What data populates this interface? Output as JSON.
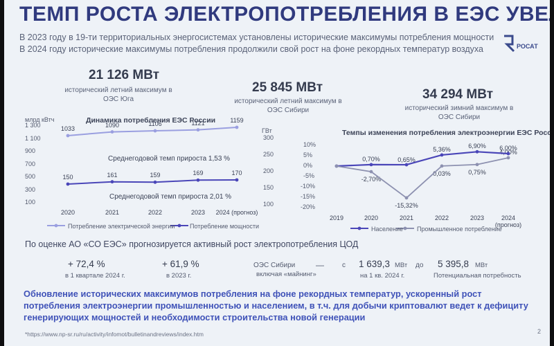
{
  "title": "ТЕМП РОСТА ЭЛЕКТРОПОТРЕБЛЕНИЯ В ЕЭС УВЕЛИЧИВАЕТСЯ",
  "logo_text": "РОСАТ",
  "intro": {
    "line1": "В 2023 году в 19-ти территориальных энергосистемах установлены исторические максимумы потребления мощности",
    "line2": "В 2024 году исторические максимумы потребления продолжили свой рост на фоне рекордных температур воздуха"
  },
  "stats": [
    {
      "value": "21 126 МВт",
      "desc1": "исторический летний максимум в",
      "desc2": "ОЭС Юга"
    },
    {
      "value": "25 845 МВт",
      "desc1": "исторический летний максимум в",
      "desc2": "ОЭС Сибири"
    },
    {
      "value": "34 294 МВт",
      "desc1": "исторический зимний максимум в",
      "desc2": "ОЭС Сибири"
    }
  ],
  "colors": {
    "title": "#303a7e",
    "line_energy": "#9a9fe0",
    "line_power": "#4a46b8",
    "line_population": "#4a46b8",
    "line_industry": "#8d91b0",
    "conclusion": "#3f52b8"
  },
  "chart_data": [
    {
      "type": "line",
      "title": "Динамика потребления ЕЭС России",
      "x": [
        "2020",
        "2021",
        "2022",
        "2023",
        "2024 (прогноз)"
      ],
      "left_axis_unit": "млрд кВтч",
      "left_ticks": [
        "1 300",
        "1 100",
        "900",
        "700",
        "500",
        "300",
        "100"
      ],
      "right_axis_unit": "ГВт",
      "right_ticks": [
        "300",
        "250",
        "200",
        "150",
        "100"
      ],
      "series": [
        {
          "name": "Потребление электрической энергии",
          "values": [
            1033,
            1090,
            1106,
            1121,
            1159
          ]
        },
        {
          "name": "Потребление мощности",
          "values": [
            150,
            161,
            159,
            169,
            170
          ]
        }
      ],
      "annotations": [
        "Среднегодовой темп прироста 1,53 %",
        "Среднегодовой темп прироста 2,01 %"
      ]
    },
    {
      "type": "line",
      "title": "Темпы изменения потребления электроэнергии ЕЭС России",
      "x": [
        "2019",
        "2020",
        "2021",
        "2022",
        "2023",
        "2024 (прогноз)"
      ],
      "y_ticks": [
        "10%",
        "5%",
        "0%",
        "-5%",
        "-10%",
        "-15%",
        "-20%"
      ],
      "ylim": [
        -20,
        10
      ],
      "series": [
        {
          "name": "Население",
          "values": [
            0,
            0.7,
            0.65,
            5.36,
            6.9,
            6.0
          ],
          "labels": [
            "",
            "0,70%",
            "0,65%",
            "5,36%",
            "6,90%",
            "6,00%"
          ]
        },
        {
          "name": "Промышленное потребление",
          "values": [
            0,
            -2.7,
            -15.32,
            0.03,
            0.75,
            4.0
          ],
          "labels": [
            "",
            "-2,70%",
            "-15,32%",
            "0,03%",
            "0,75%",
            "4,00%"
          ]
        }
      ]
    }
  ],
  "forecast": {
    "heading": "По оценке АО «СО ЕЭС» прогнозируется активный рост электропотребления ЦОД",
    "items": [
      {
        "big": "+ 72,4 %",
        "sub": "в 1 квартале 2024 г."
      },
      {
        "big": "+ 61,9 %",
        "sub": "в 2023 г."
      }
    ],
    "region": "ОЭС Сибири",
    "region_sub": "включая «майнинг»",
    "dash": "—",
    "from_word": "с",
    "from_value": "1 639,3",
    "from_unit": "МВт",
    "from_sub": "на 1 кв. 2024 г.",
    "to_word": "до",
    "to_value": "5 395,8",
    "to_unit": "МВт",
    "to_sub": "Потенциальная потребность"
  },
  "conclusion": "Обновление исторических максимумов потребления на фоне рекордных температур, ускоренный рост потребления электроэнергии промышленностью и населением, в т.ч. для добычи криптовалют ведет к дефициту генерирующих мощностей и необходимости строительства новой генерации",
  "footnote": "*https://www.np-sr.ru/ru/activity/infomot/bulletinandreviews/index.htm",
  "page_number": "2"
}
